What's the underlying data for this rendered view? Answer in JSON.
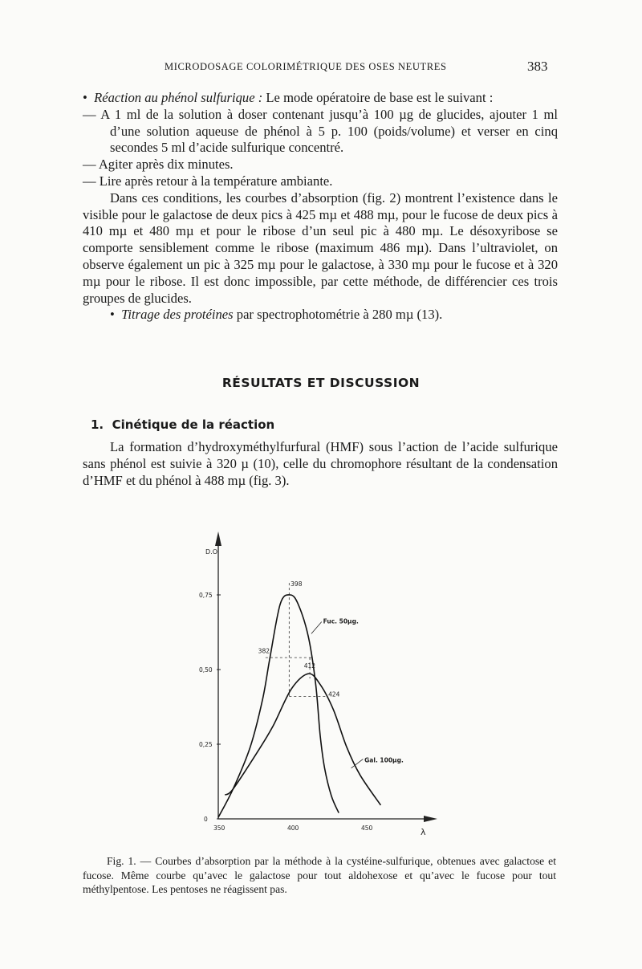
{
  "header": {
    "running_title": "MICRODOSAGE COLORIMÉTRIQUE DES OSES NEUTRES",
    "page_number": "383"
  },
  "body": {
    "bullet1_italic": "Réaction au phénol sulfurique :",
    "bullet1_rest": " Le mode opératoire de base est le suivant :",
    "step1": "— A 1 ml de la solution à doser contenant jusqu’à 100 µg de glucides, ajouter 1 ml d’une solution aqueuse de phénol à 5 p. 100 (poids/volume) et verser en cinq secondes 5 ml d’acide sulfurique concentré.",
    "step2": "— Agiter après dix minutes.",
    "step3": "— Lire après retour à la température ambiante.",
    "para1": "Dans ces conditions, les courbes d’absorption (fig. 2) montrent l’existence dans le visible pour le galactose de deux pics à 425 mµ et 488 mµ, pour le fucose de deux pics à 410 mµ et 480 mµ et pour le ribose d’un seul pic à 480 mµ. Le désoxyribose se comporte sensiblement comme le ribose (maximum 486 mµ). Dans l’ultraviolet, on observe également un pic à 325 mµ pour le galactose, à 330 mµ pour le fucose et à 320 mµ pour le ribose. Il est donc impossible, par cette méthode, de différencier ces trois groupes de glucides.",
    "bullet2_italic": "Titrage des protéines",
    "bullet2_rest": " par spectrophotométrie à 280 mµ (13).",
    "section_title": "RÉSULTATS ET DISCUSSION",
    "subsection_number": "1.",
    "subsection_title": "Cinétique de la réaction",
    "para2": "La formation d’hydroxyméthylfurfural (HMF) sous l’action de l’acide sulfurique sans phénol est suivie à 320 µ (10), celle du chromophore résultant de la condensation d’HMF et du phénol à 488 mµ (fig. 3)."
  },
  "chart_data": {
    "type": "line",
    "ylabel": "D.O.",
    "xlabel": "λ",
    "xlim": [
      350,
      470
    ],
    "ylim": [
      0,
      0.85
    ],
    "x_ticks": [
      "350",
      "400",
      "450"
    ],
    "y_ticks": [
      "0",
      "0,25",
      "0,50",
      "0,75"
    ],
    "grid": false,
    "series": [
      {
        "name": "Fuc. 50µg.",
        "x": [
          350,
          360,
          371.6,
          380,
          385,
          392,
          398.6,
          404,
          411,
          416,
          419,
          422,
          426.6,
          431.6
        ],
        "y": [
          0.005,
          0.1,
          0.24,
          0.4,
          0.54,
          0.72,
          0.75,
          0.72,
          0.61,
          0.45,
          0.28,
          0.17,
          0.077,
          0.02
        ]
      },
      {
        "name": "Gal. 100µg.",
        "x": [
          354.5,
          360,
          376,
          387,
          399.5,
          411,
          419,
          428,
          437,
          446,
          460
        ],
        "y": [
          0.08,
          0.1,
          0.22,
          0.31,
          0.435,
          0.486,
          0.45,
          0.365,
          0.24,
          0.147,
          0.046
        ]
      }
    ],
    "annotations": [
      "398",
      "382",
      "412",
      "424"
    ]
  },
  "caption": {
    "text": "Fig. 1. — Courbes d’absorption par la méthode à la cystéine-sulfurique, obtenues avec galactose et fucose. Même courbe qu’avec le galactose pour tout aldohexose et qu’avec le fucose pour tout méthylpentose. Les pentoses ne réagissent pas."
  }
}
